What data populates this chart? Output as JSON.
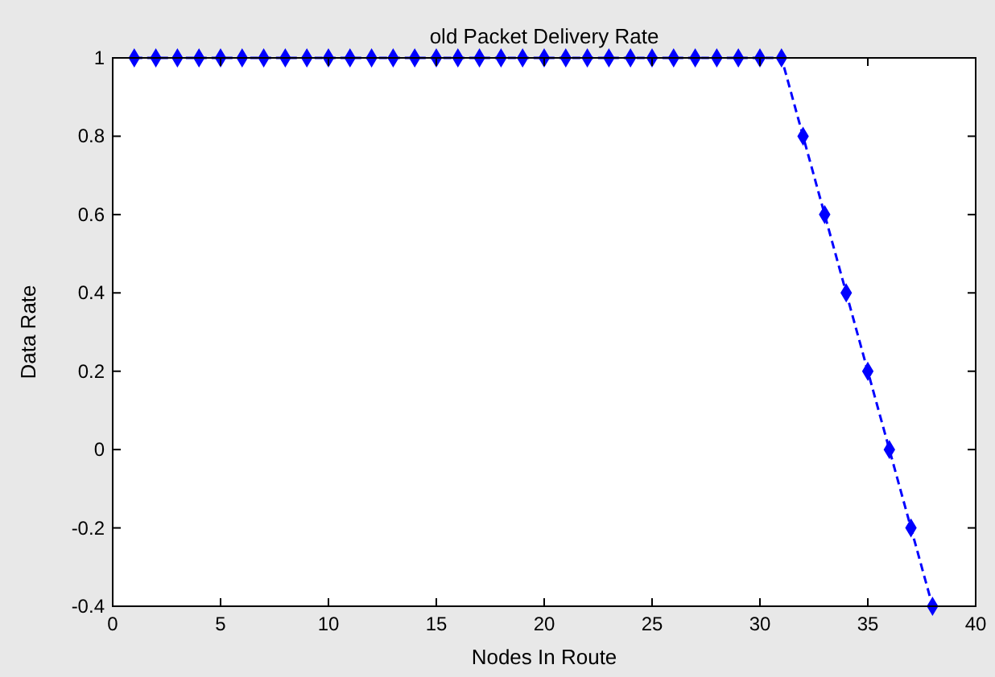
{
  "chart_data": {
    "type": "line",
    "title": "old Packet Delivery Rate",
    "xlabel": "Nodes In Route",
    "ylabel": "Data Rate",
    "x": [
      1,
      2,
      3,
      4,
      5,
      6,
      7,
      8,
      9,
      10,
      11,
      12,
      13,
      14,
      15,
      16,
      17,
      18,
      19,
      20,
      21,
      22,
      23,
      24,
      25,
      26,
      27,
      28,
      29,
      30,
      31,
      32,
      33,
      34,
      35,
      36,
      37,
      38
    ],
    "series": [
      {
        "color": "#0000ff",
        "values": [
          1,
          1,
          1,
          1,
          1,
          1,
          1,
          1,
          1,
          1,
          1,
          1,
          1,
          1,
          1,
          1,
          1,
          1,
          1,
          1,
          1,
          1,
          1,
          1,
          1,
          1,
          1,
          1,
          1,
          1,
          1,
          0.8,
          0.6,
          0.4,
          0.2,
          0,
          -0.2,
          -0.4
        ]
      }
    ],
    "xlim": [
      0,
      40
    ],
    "xticks": [
      0,
      5,
      10,
      15,
      20,
      25,
      30,
      35,
      40
    ],
    "ylim": [
      -0.4,
      1
    ],
    "yticks": [
      -0.4,
      -0.2,
      0,
      0.2,
      0.4,
      0.6,
      0.8,
      1
    ],
    "grid": false,
    "marker": "diamond",
    "line_style": "dashed"
  }
}
